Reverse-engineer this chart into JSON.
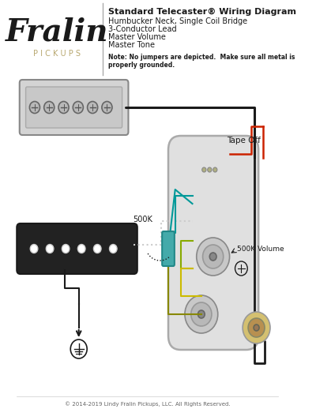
{
  "title": "Standard Telecaster® Wiring Diagram",
  "subtitle_lines": [
    "Humbucker Neck, Single Coil Bridge",
    "3-Conductor Lead",
    "Master Volume",
    "Master Tone"
  ],
  "note": "Note: No jumpers are depicted.  Make sure all metal is\nproperly grounded.",
  "copyright": "© 2014-2019 Lindy Fralin Pickups, LLC. All Rights Reserved.",
  "fralin_color": "#1a1a1a",
  "pickups_color": "#b8a870",
  "bg_color": "#ffffff",
  "label_500k": "500K",
  "label_500k_volume": "500K Volume",
  "label_tape_off": "Tape Off"
}
